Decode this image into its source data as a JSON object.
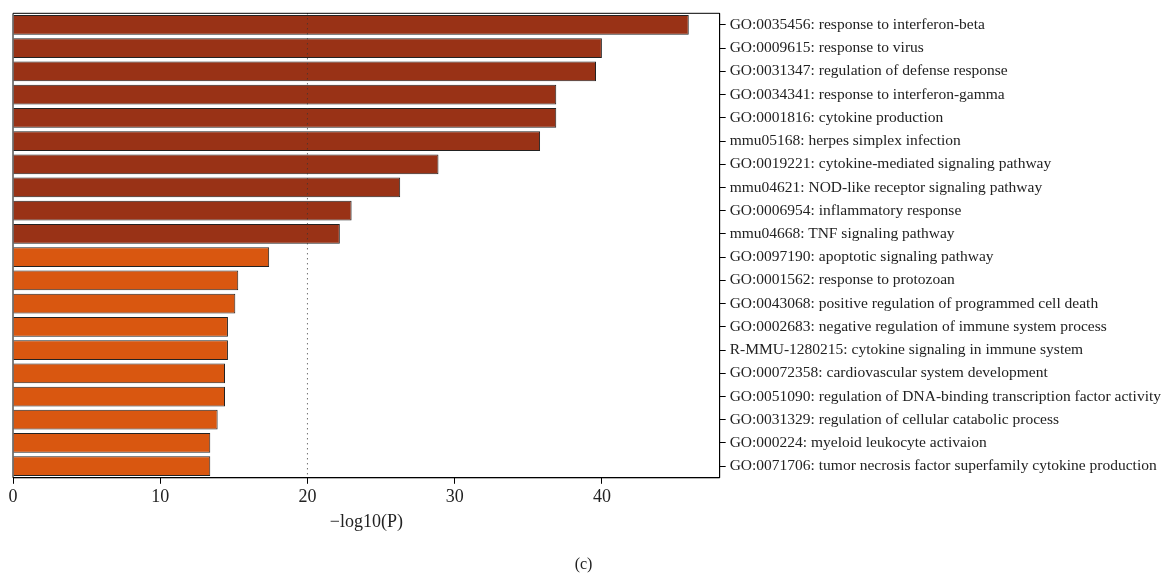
{
  "chart_data": {
    "type": "bar",
    "orientation": "horizontal",
    "xlabel": "−log10(P)",
    "categories": [
      "GO:0035456: response to interferon-beta",
      "GO:0009615: response to virus",
      "GO:0031347: regulation of defense response",
      "GO:0034341: response to interferon-gamma",
      "GO:0001816: cytokine production",
      "mmu05168: herpes simplex infection",
      "GO:0019221: cytokine-mediated signaling pathway",
      "mmu04621: NOD-like receptor signaling pathway",
      "GO:0006954: inflammatory response",
      "mmu04668: TNF signaling pathway",
      "GO:0097190: apoptotic signaling pathway",
      "GO:0001562: response to protozoan",
      "GO:0043068: positive regulation of programmed cell death",
      "GO:0002683: negative regulation of immune system process",
      "R-MMU-1280215: cytokine signaling in immune system",
      "GO:00072358: cardiovascular system development",
      "GO:0051090: regulation of DNA-binding transcription factor activity",
      "GO:0031329: regulation of cellular catabolic process",
      "GO:000224: myeloid leukocyte activaion",
      "GO:0071706: tumor necrosis factor superfamily cytokine production"
    ],
    "values": [
      45.9,
      40.0,
      39.6,
      36.9,
      36.9,
      35.8,
      28.9,
      26.3,
      23.0,
      22.2,
      17.4,
      15.3,
      15.1,
      14.6,
      14.6,
      14.4,
      14.4,
      13.9,
      13.4,
      13.4
    ],
    "colors": [
      "#993216",
      "#993216",
      "#993216",
      "#993216",
      "#993216",
      "#993216",
      "#993216",
      "#993216",
      "#993216",
      "#993216",
      "#d95710",
      "#d95710",
      "#d95710",
      "#d95710",
      "#d95710",
      "#d95710",
      "#d95710",
      "#d95710",
      "#d95710",
      "#d95710"
    ],
    "xlim": [
      0,
      48
    ],
    "xticks": [
      0,
      10,
      20,
      30,
      40
    ],
    "ref_lines": [
      {
        "axis": "x",
        "value": 20,
        "color": "#333333",
        "line_style": "dotted"
      }
    ],
    "annotations": [
      "(c)"
    ],
    "grid": false,
    "legend": false
  }
}
